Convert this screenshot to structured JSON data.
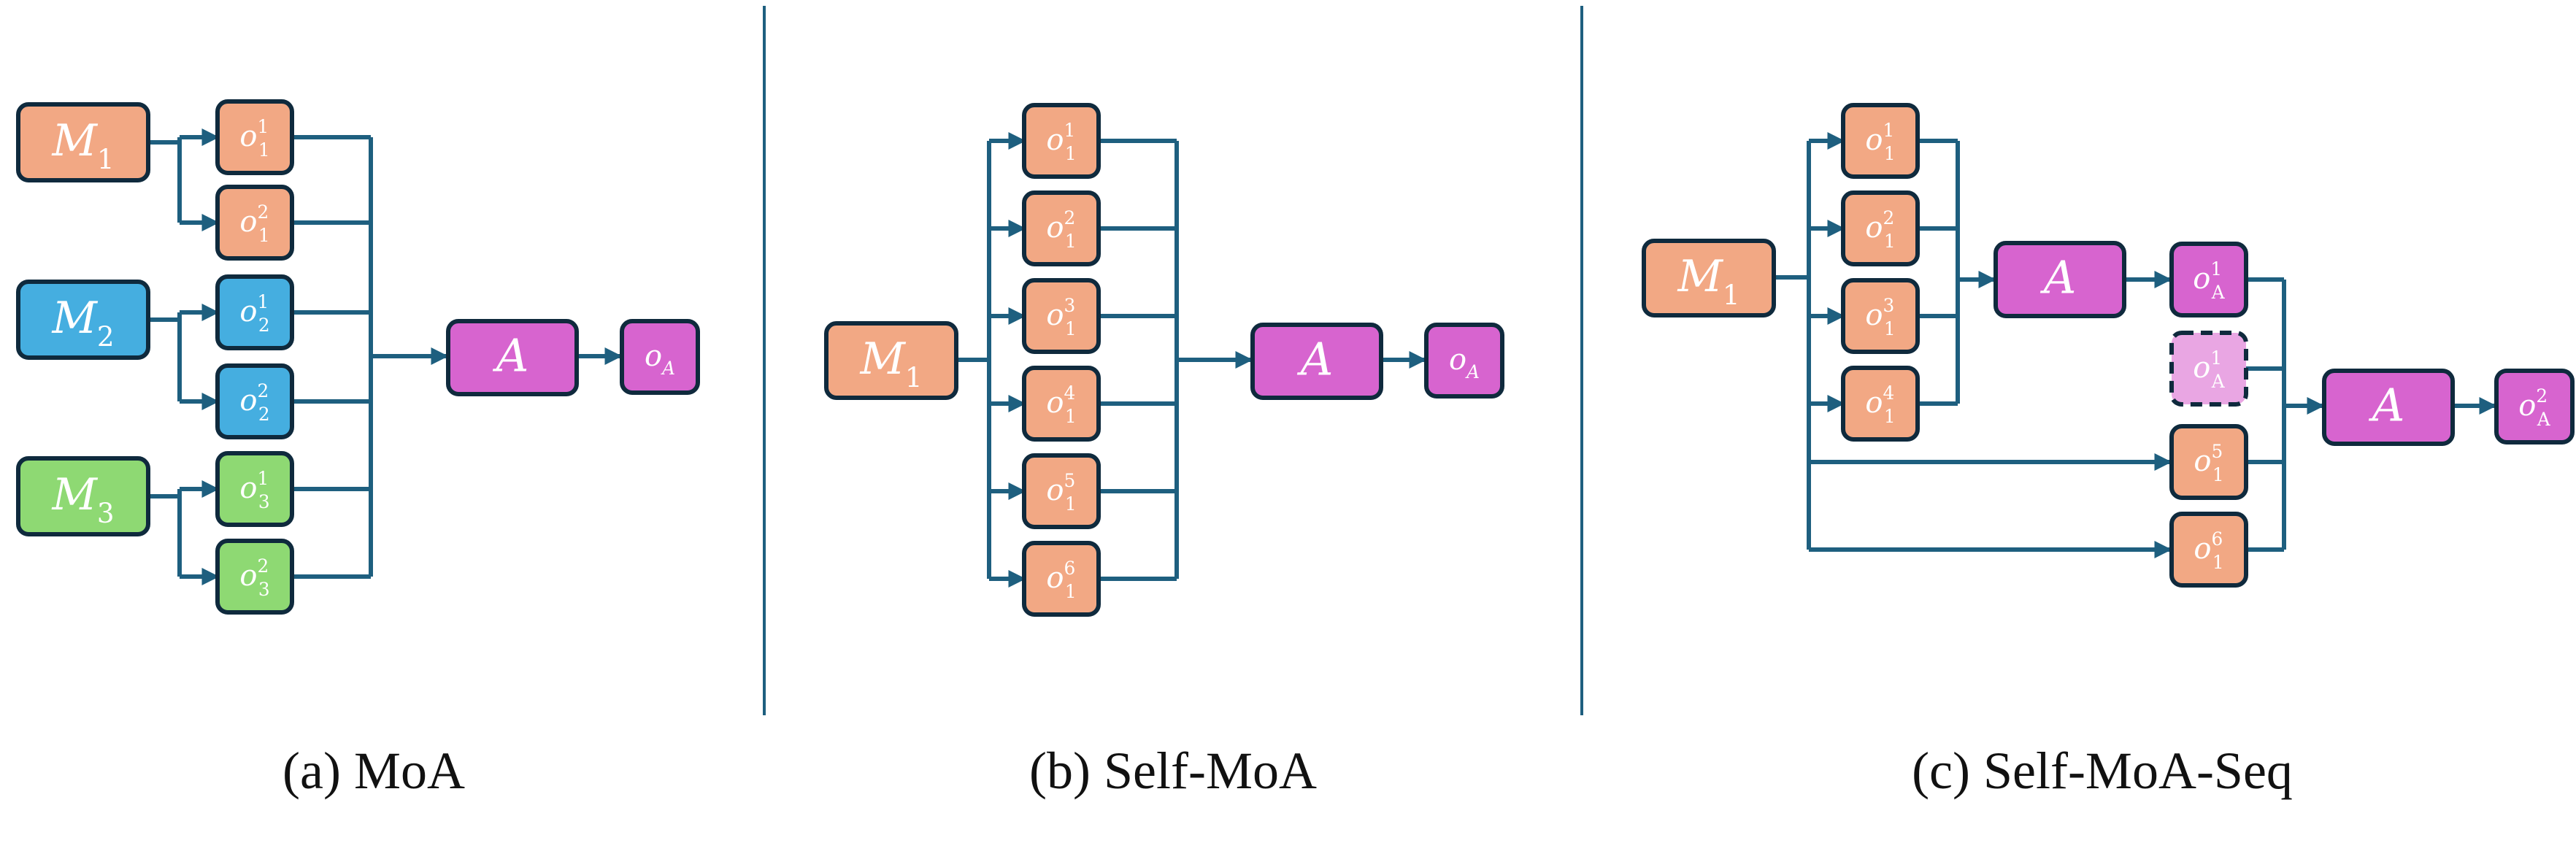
{
  "colors": {
    "orange": "#f2a884",
    "blue": "#45aee0",
    "green": "#8ed973",
    "magenta": "#d764cf",
    "pink_light": "#e9a6e3",
    "stroke": "#0f2a3d",
    "arrow": "#1e5f7f"
  },
  "panels": [
    {
      "caption": "(a) MoA",
      "models": [
        {
          "base": "M",
          "sub": "1"
        },
        {
          "base": "M",
          "sub": "2"
        },
        {
          "base": "M",
          "sub": "3"
        }
      ],
      "outputs": [
        {
          "base": "o",
          "sub": "1",
          "sup": "1"
        },
        {
          "base": "o",
          "sub": "1",
          "sup": "2"
        },
        {
          "base": "o",
          "sub": "2",
          "sup": "1"
        },
        {
          "base": "o",
          "sub": "2",
          "sup": "2"
        },
        {
          "base": "o",
          "sub": "3",
          "sup": "1"
        },
        {
          "base": "o",
          "sub": "3",
          "sup": "2"
        }
      ],
      "aggregator": "A",
      "final": {
        "base": "o",
        "sub": "A"
      }
    },
    {
      "caption": "(b) Self-MoA",
      "model": {
        "base": "M",
        "sub": "1"
      },
      "outputs": [
        {
          "base": "o",
          "sub": "1",
          "sup": "1"
        },
        {
          "base": "o",
          "sub": "1",
          "sup": "2"
        },
        {
          "base": "o",
          "sub": "1",
          "sup": "3"
        },
        {
          "base": "o",
          "sub": "1",
          "sup": "4"
        },
        {
          "base": "o",
          "sub": "1",
          "sup": "5"
        },
        {
          "base": "o",
          "sub": "1",
          "sup": "6"
        }
      ],
      "aggregator": "A",
      "final": {
        "base": "o",
        "sub": "A"
      }
    },
    {
      "caption": "(c) Self-MoA-Seq",
      "model": {
        "base": "M",
        "sub": "1"
      },
      "first_outputs": [
        {
          "base": "o",
          "sub": "1",
          "sup": "1"
        },
        {
          "base": "o",
          "sub": "1",
          "sup": "2"
        },
        {
          "base": "o",
          "sub": "1",
          "sup": "3"
        },
        {
          "base": "o",
          "sub": "1",
          "sup": "4"
        }
      ],
      "aggregator_1": "A",
      "intermediate": {
        "base": "o",
        "sub": "A",
        "sup": "1"
      },
      "intermediate_copy": {
        "base": "o",
        "sub": "A",
        "sup": "1"
      },
      "later_outputs": [
        {
          "base": "o",
          "sub": "1",
          "sup": "5"
        },
        {
          "base": "o",
          "sub": "1",
          "sup": "6"
        }
      ],
      "aggregator_2": "A",
      "final": {
        "base": "o",
        "sub": "A",
        "sup": "2"
      }
    }
  ]
}
